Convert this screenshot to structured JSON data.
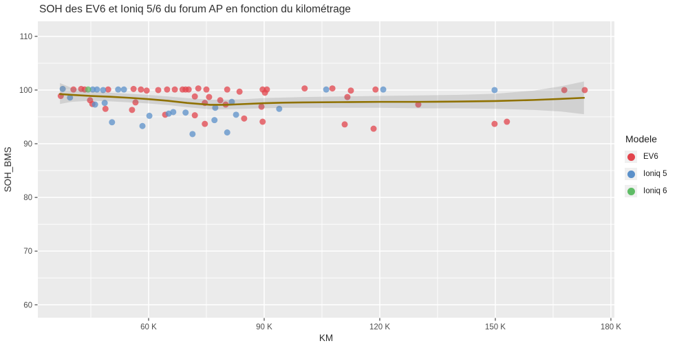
{
  "chart_data": {
    "type": "scatter",
    "title": "SOH des EV6 et Ioniq 5/6 du forum AP en fonction du kilométrage",
    "xlabel": "KM",
    "ylabel": "SOH_BMS",
    "xlim": [
      31250,
      180900
    ],
    "ylim": [
      57.6,
      112.8
    ],
    "x_ticks": [
      60000,
      90000,
      120000,
      150000,
      180000
    ],
    "x_tick_labels": [
      "60 K",
      "90 K",
      "120 K",
      "150 K",
      "180 K"
    ],
    "x_minor_ticks": [
      45000,
      75000,
      105000,
      135000,
      165000
    ],
    "y_ticks": [
      60,
      70,
      80,
      90,
      100,
      110
    ],
    "y_minor_ticks": [
      65,
      75,
      85,
      95,
      105
    ],
    "panel_bg": "#EBEBEB",
    "grid_color": "#FFFFFF",
    "tick_label_color": "#4D4D4D",
    "axis_title_color": "#2E2E2E",
    "legend": {
      "title": "Modele",
      "position": "right"
    },
    "series": [
      {
        "name": "EV6",
        "color": "#E2444C",
        "points": [
          [
            37200,
            98.9
          ],
          [
            40500,
            100.1
          ],
          [
            42500,
            100.2
          ],
          [
            43400,
            100.1
          ],
          [
            49500,
            100.1
          ],
          [
            56100,
            100.2
          ],
          [
            58000,
            100.1
          ],
          [
            59500,
            99.9
          ],
          [
            44800,
            98.1
          ],
          [
            45400,
            97.4
          ],
          [
            48800,
            96.5
          ],
          [
            55700,
            96.3
          ],
          [
            56600,
            97.7
          ],
          [
            62500,
            100.0
          ],
          [
            64800,
            100.1
          ],
          [
            66800,
            100.1
          ],
          [
            68800,
            100.1
          ],
          [
            69600,
            100.1
          ],
          [
            70400,
            100.1
          ],
          [
            72900,
            100.3
          ],
          [
            75000,
            100.1
          ],
          [
            80400,
            100.1
          ],
          [
            72000,
            98.8
          ],
          [
            75700,
            98.7
          ],
          [
            74600,
            97.6
          ],
          [
            78600,
            98.1
          ],
          [
            80000,
            97.3
          ],
          [
            64300,
            95.4
          ],
          [
            72000,
            95.3
          ],
          [
            74600,
            93.7
          ],
          [
            84800,
            94.7
          ],
          [
            83600,
            99.7
          ],
          [
            89600,
            100.1
          ],
          [
            90700,
            100.1
          ],
          [
            90200,
            99.5
          ],
          [
            89300,
            96.9
          ],
          [
            89600,
            94.1
          ],
          [
            100500,
            100.3
          ],
          [
            107700,
            100.3
          ],
          [
            112500,
            99.9
          ],
          [
            111600,
            98.7
          ],
          [
            110900,
            93.6
          ],
          [
            118400,
            92.8
          ],
          [
            118900,
            100.1
          ],
          [
            130000,
            97.3
          ],
          [
            149800,
            93.7
          ],
          [
            153000,
            94.1
          ],
          [
            167900,
            100.0
          ],
          [
            173200,
            100.0
          ]
        ]
      },
      {
        "name": "Ioniq 5",
        "color": "#5B90C9",
        "points": [
          [
            37700,
            100.2
          ],
          [
            39600,
            98.6
          ],
          [
            45500,
            100.1
          ],
          [
            46600,
            100.1
          ],
          [
            48200,
            100.0
          ],
          [
            52100,
            100.1
          ],
          [
            53600,
            100.1
          ],
          [
            46100,
            97.3
          ],
          [
            48600,
            97.6
          ],
          [
            50500,
            94.0
          ],
          [
            58400,
            93.3
          ],
          [
            60200,
            95.2
          ],
          [
            65200,
            95.6
          ],
          [
            66400,
            95.9
          ],
          [
            69600,
            95.8
          ],
          [
            71400,
            91.8
          ],
          [
            80400,
            92.1
          ],
          [
            77300,
            96.7
          ],
          [
            81600,
            97.8
          ],
          [
            82700,
            95.4
          ],
          [
            77100,
            94.4
          ],
          [
            93900,
            96.5
          ],
          [
            106100,
            100.1
          ],
          [
            120900,
            100.1
          ],
          [
            149800,
            100.0
          ]
        ]
      },
      {
        "name": "Ioniq 6",
        "color": "#5FBC66",
        "points": [
          [
            44300,
            100.1
          ]
        ]
      }
    ],
    "smooth": {
      "method": "loess",
      "line_color": "#8F7100",
      "band_color": "#777777",
      "band_opacity": 0.22,
      "line": [
        [
          37000,
          99.25
        ],
        [
          40000,
          99.1
        ],
        [
          45000,
          98.9
        ],
        [
          50000,
          98.75
        ],
        [
          55000,
          98.55
        ],
        [
          60000,
          98.3
        ],
        [
          65000,
          98.0
        ],
        [
          70000,
          97.6
        ],
        [
          76000,
          97.25
        ],
        [
          80000,
          97.25
        ],
        [
          85000,
          97.4
        ],
        [
          90000,
          97.55
        ],
        [
          95000,
          97.65
        ],
        [
          100000,
          97.7
        ],
        [
          110000,
          97.75
        ],
        [
          120000,
          97.8
        ],
        [
          130000,
          97.8
        ],
        [
          140000,
          97.85
        ],
        [
          150000,
          97.95
        ],
        [
          160000,
          98.15
        ],
        [
          167000,
          98.35
        ],
        [
          173000,
          98.55
        ]
      ],
      "band_upper": [
        [
          37000,
          101.3
        ],
        [
          40000,
          100.4
        ],
        [
          45000,
          99.8
        ],
        [
          50000,
          99.5
        ],
        [
          55000,
          99.3
        ],
        [
          60000,
          99.1
        ],
        [
          65000,
          98.8
        ],
        [
          70000,
          98.5
        ],
        [
          76000,
          98.2
        ],
        [
          80000,
          98.2
        ],
        [
          85000,
          98.3
        ],
        [
          90000,
          98.5
        ],
        [
          95000,
          98.6
        ],
        [
          100000,
          98.7
        ],
        [
          110000,
          98.8
        ],
        [
          120000,
          98.9
        ],
        [
          130000,
          99.0
        ],
        [
          140000,
          99.1
        ],
        [
          150000,
          99.3
        ],
        [
          160000,
          99.9
        ],
        [
          167000,
          100.7
        ],
        [
          173000,
          101.6
        ]
      ],
      "band_lower": [
        [
          37000,
          97.4
        ],
        [
          40000,
          97.8
        ],
        [
          45000,
          98.0
        ],
        [
          50000,
          97.9
        ],
        [
          55000,
          97.7
        ],
        [
          60000,
          97.5
        ],
        [
          65000,
          97.2
        ],
        [
          70000,
          96.8
        ],
        [
          76000,
          96.4
        ],
        [
          80000,
          96.4
        ],
        [
          85000,
          96.5
        ],
        [
          90000,
          96.6
        ],
        [
          95000,
          96.7
        ],
        [
          100000,
          96.7
        ],
        [
          110000,
          96.7
        ],
        [
          120000,
          96.7
        ],
        [
          130000,
          96.6
        ],
        [
          140000,
          96.6
        ],
        [
          150000,
          96.5
        ],
        [
          160000,
          96.3
        ],
        [
          167000,
          96.0
        ],
        [
          173000,
          95.5
        ]
      ]
    }
  }
}
